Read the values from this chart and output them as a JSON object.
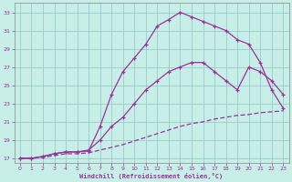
{
  "xlabel": "Windchill (Refroidissement éolien,°C)",
  "background_color": "#c8eee8",
  "grid_color": "#99cccc",
  "line_color": "#993399",
  "xlim": [
    -0.5,
    23.5
  ],
  "ylim": [
    16.5,
    34
  ],
  "yticks": [
    17,
    19,
    21,
    23,
    25,
    27,
    29,
    31,
    33
  ],
  "xticks": [
    0,
    1,
    2,
    3,
    4,
    5,
    6,
    7,
    8,
    9,
    10,
    11,
    12,
    13,
    14,
    15,
    16,
    17,
    18,
    19,
    20,
    21,
    22,
    23
  ],
  "curve1_x": [
    0,
    1,
    2,
    3,
    4,
    5,
    6,
    7,
    8,
    9,
    10,
    11,
    12,
    13,
    14,
    15,
    16,
    17,
    18,
    19,
    20,
    21,
    22,
    23
  ],
  "curve1_y": [
    17.0,
    17.0,
    17.2,
    17.5,
    17.7,
    17.7,
    17.8,
    20.5,
    24.0,
    26.5,
    28.0,
    29.5,
    31.5,
    32.2,
    33.0,
    32.5,
    32.0,
    31.5,
    31.0,
    30.0,
    29.5,
    27.5,
    24.5,
    22.5
  ],
  "curve2_x": [
    0,
    1,
    2,
    3,
    4,
    5,
    6,
    7,
    8,
    9,
    10,
    11,
    12,
    13,
    14,
    15,
    16,
    17,
    18,
    19,
    20,
    21,
    22,
    23
  ],
  "curve2_y": [
    17.0,
    17.0,
    17.2,
    17.5,
    17.7,
    17.7,
    17.9,
    19.0,
    20.5,
    21.5,
    23.0,
    24.5,
    25.5,
    26.5,
    27.0,
    27.5,
    27.5,
    26.5,
    25.5,
    24.5,
    27.0,
    26.5,
    25.5,
    24.0
  ],
  "curve3_x": [
    0,
    1,
    2,
    3,
    4,
    5,
    6,
    7,
    8,
    9,
    10,
    11,
    12,
    13,
    14,
    15,
    16,
    17,
    18,
    19,
    20,
    21,
    22,
    23
  ],
  "curve3_y": [
    17.0,
    17.0,
    17.1,
    17.3,
    17.5,
    17.5,
    17.6,
    17.9,
    18.2,
    18.5,
    18.9,
    19.3,
    19.7,
    20.1,
    20.5,
    20.8,
    21.0,
    21.3,
    21.5,
    21.7,
    21.8,
    22.0,
    22.1,
    22.2
  ]
}
